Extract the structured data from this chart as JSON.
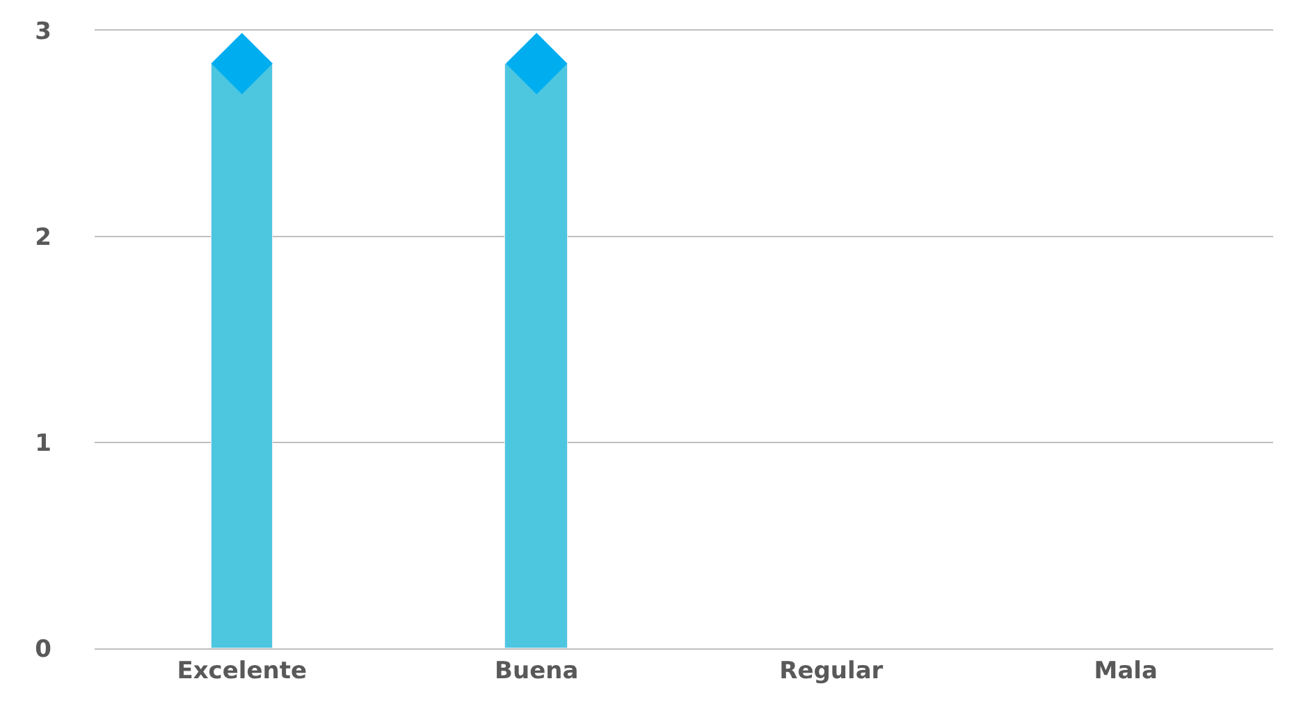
{
  "chart_data": {
    "type": "bar",
    "categories": [
      "Excelente",
      "Buena",
      "Regular",
      "Mala"
    ],
    "series": [
      {
        "color": "#4dc6e0",
        "values": [
          2.84,
          2.84,
          null,
          null
        ]
      },
      {
        "type": "scatter",
        "color": "#00aeef",
        "marker": "diamond",
        "values": [
          2.84,
          2.84,
          null,
          null
        ]
      }
    ],
    "ylim": [
      0,
      3
    ],
    "yticks": [
      0,
      1,
      2,
      3
    ],
    "grid": "y"
  }
}
